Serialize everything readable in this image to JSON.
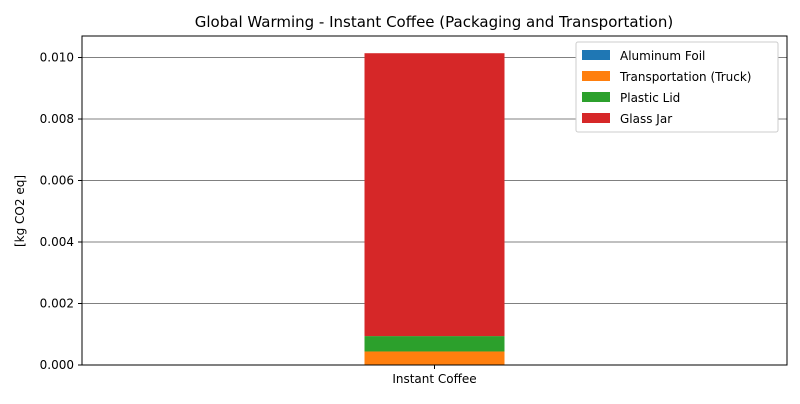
{
  "chart_data": {
    "type": "bar",
    "stacked": true,
    "title": "Global Warming - Instant Coffee (Packaging and Transportation)",
    "xlabel": "",
    "ylabel": "[kg CO2 eq]",
    "categories": [
      "Instant Coffee"
    ],
    "ylim": [
      0,
      0.0107
    ],
    "yticks": [
      0.0,
      0.002,
      0.004,
      0.006,
      0.008,
      0.01
    ],
    "ytick_labels": [
      "0.000",
      "0.002",
      "0.004",
      "0.006",
      "0.008",
      "0.010"
    ],
    "grid": "horizontal",
    "legend_position": "top-right",
    "series": [
      {
        "name": "Aluminum Foil",
        "values": [
          1e-05
        ],
        "color": "#1f77b4"
      },
      {
        "name": "Transportation (Truck)",
        "values": [
          0.00043
        ],
        "color": "#ff7f0e"
      },
      {
        "name": "Plastic Lid",
        "values": [
          0.0005
        ],
        "color": "#2ca02c"
      },
      {
        "name": "Glass Jar",
        "values": [
          0.0092
        ],
        "color": "#d62728"
      }
    ]
  }
}
